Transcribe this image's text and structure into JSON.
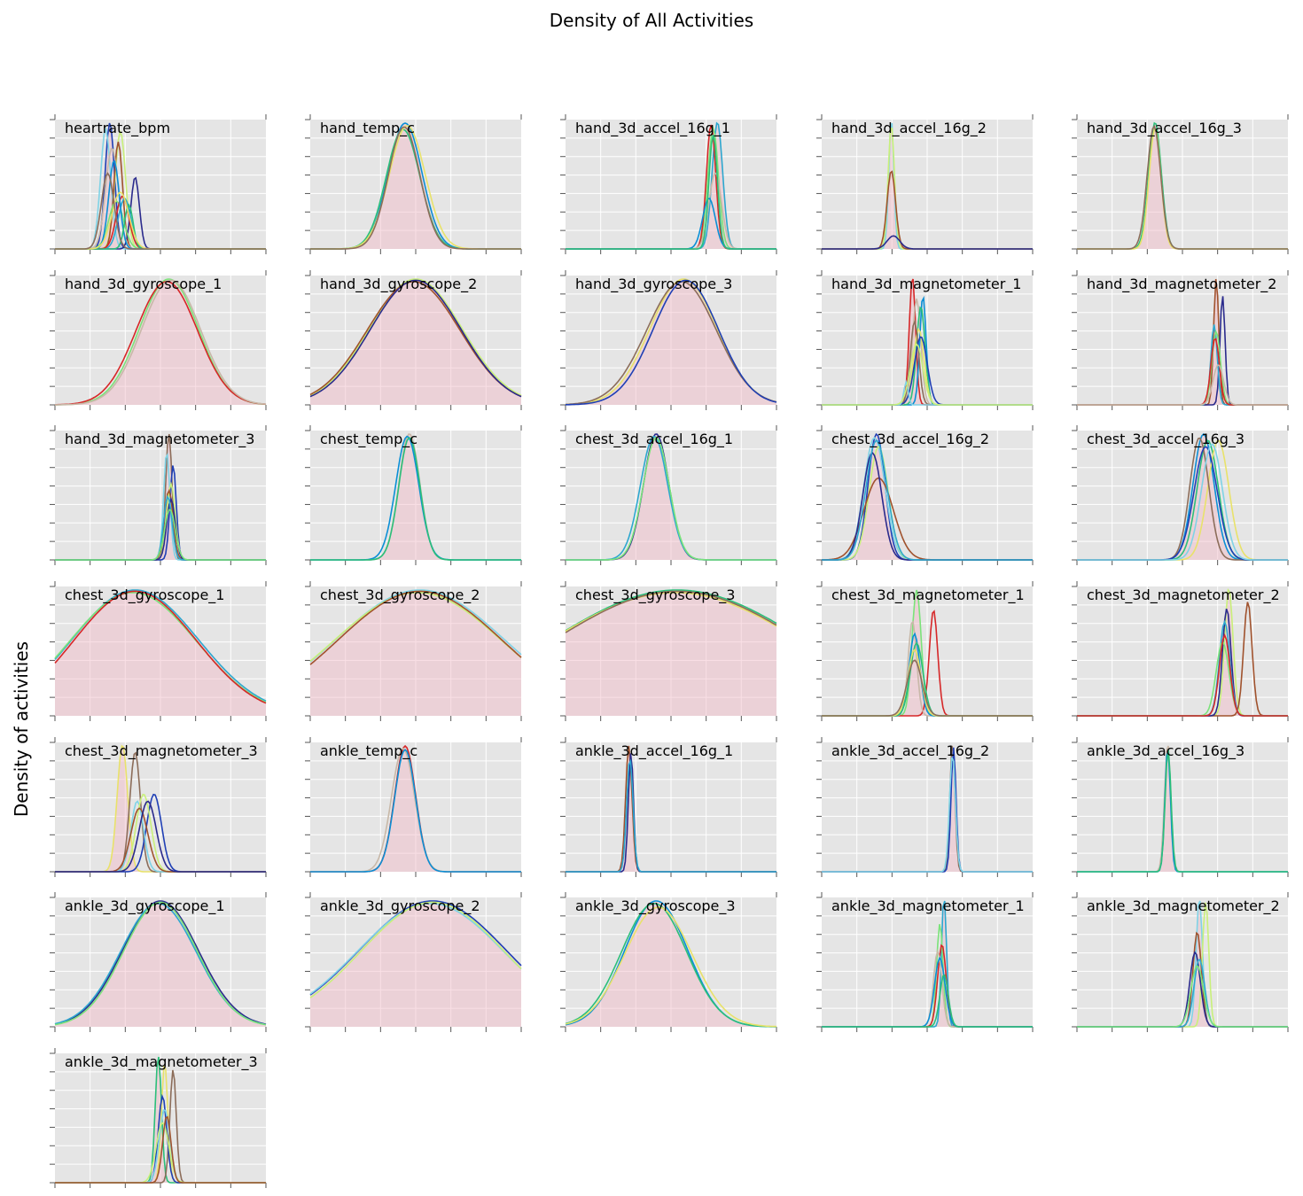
{
  "figure": {
    "title": "Density of All Activities",
    "ylabel": "Density of activities"
  },
  "style": {
    "panel_bg": "#e5e5e5",
    "grid_color": "#ffffff",
    "fill_color": "#f2b8c6",
    "palette": [
      "#1f3fb5",
      "#0a8fd6",
      "#2ca7cf",
      "#7fd3e6",
      "#2bbf7a",
      "#7be37a",
      "#c9f07a",
      "#e8e26a",
      "#d62728",
      "#a0522d",
      "#8c6d5a",
      "#c8b8a8",
      "#2a2a8c"
    ]
  },
  "chart_data": [
    {
      "type": "area",
      "title": "heartrate_bpm",
      "grid": true,
      "legend": "none",
      "series": [
        {
          "mu": 0.26,
          "sd": 0.022,
          "amp": 1.0
        },
        {
          "mu": 0.24,
          "sd": 0.024,
          "amp": 0.95
        },
        {
          "mu": 0.31,
          "sd": 0.025,
          "amp": 0.93
        },
        {
          "mu": 0.3,
          "sd": 0.02,
          "amp": 0.85
        },
        {
          "mu": 0.38,
          "sd": 0.02,
          "amp": 0.57
        },
        {
          "mu": 0.33,
          "sd": 0.03,
          "amp": 0.4
        },
        {
          "mu": 0.29,
          "sd": 0.035,
          "amp": 0.38
        },
        {
          "mu": 0.32,
          "sd": 0.03,
          "amp": 0.42
        },
        {
          "mu": 0.27,
          "sd": 0.03,
          "amp": 0.8
        },
        {
          "mu": 0.28,
          "sd": 0.025,
          "amp": 0.7
        },
        {
          "mu": 0.35,
          "sd": 0.02,
          "amp": 0.35
        },
        {
          "mu": 0.31,
          "sd": 0.04,
          "amp": 0.45
        },
        {
          "mu": 0.25,
          "sd": 0.03,
          "amp": 0.6
        }
      ]
    },
    {
      "type": "area",
      "title": "hand_temp_c",
      "grid": true,
      "legend": "none",
      "series": [
        {
          "mu": 0.45,
          "sd": 0.08,
          "amp": 1.0
        },
        {
          "mu": 0.44,
          "sd": 0.08,
          "amp": 0.95
        },
        {
          "mu": 0.46,
          "sd": 0.085,
          "amp": 0.98
        },
        {
          "mu": 0.445,
          "sd": 0.075,
          "amp": 0.97
        }
      ]
    },
    {
      "type": "area",
      "title": "hand_3d_accel_16g_1",
      "grid": true,
      "legend": "none",
      "series": [
        {
          "mu": 0.72,
          "sd": 0.025,
          "amp": 1.0
        },
        {
          "mu": 0.7,
          "sd": 0.025,
          "amp": 0.95
        },
        {
          "mu": 0.69,
          "sd": 0.022,
          "amp": 0.98
        },
        {
          "mu": 0.71,
          "sd": 0.03,
          "amp": 0.6
        },
        {
          "mu": 0.68,
          "sd": 0.03,
          "amp": 0.4
        },
        {
          "mu": 0.7,
          "sd": 0.02,
          "amp": 0.9
        }
      ]
    },
    {
      "type": "area",
      "title": "hand_3d_accel_16g_2",
      "grid": true,
      "legend": "none",
      "series": [
        {
          "mu": 0.33,
          "sd": 0.012,
          "amp": 1.0
        },
        {
          "mu": 0.33,
          "sd": 0.015,
          "amp": 0.95
        },
        {
          "mu": 0.33,
          "sd": 0.02,
          "amp": 0.6
        },
        {
          "mu": 0.34,
          "sd": 0.03,
          "amp": 0.1
        }
      ]
    },
    {
      "type": "area",
      "title": "hand_3d_accel_16g_3",
      "grid": true,
      "legend": "none",
      "series": [
        {
          "mu": 0.37,
          "sd": 0.03,
          "amp": 1.0
        },
        {
          "mu": 0.37,
          "sd": 0.028,
          "amp": 0.95
        },
        {
          "mu": 0.365,
          "sd": 0.032,
          "amp": 0.97
        }
      ]
    },
    {
      "type": "area",
      "title": "hand_3d_gyroscope_1",
      "grid": true,
      "legend": "none",
      "series": [
        {
          "mu": 0.54,
          "sd": 0.14,
          "amp": 1.0
        },
        {
          "mu": 0.53,
          "sd": 0.145,
          "amp": 0.98
        },
        {
          "mu": 0.55,
          "sd": 0.14,
          "amp": 0.99
        }
      ]
    },
    {
      "type": "area",
      "title": "hand_3d_gyroscope_2",
      "grid": true,
      "legend": "none",
      "series": [
        {
          "mu": 0.5,
          "sd": 0.22,
          "amp": 1.0
        },
        {
          "mu": 0.49,
          "sd": 0.22,
          "amp": 0.98
        },
        {
          "mu": 0.5,
          "sd": 0.215,
          "amp": 0.99
        }
      ]
    },
    {
      "type": "area",
      "title": "hand_3d_gyroscope_3",
      "grid": true,
      "legend": "none",
      "series": [
        {
          "mu": 0.56,
          "sd": 0.16,
          "amp": 1.0
        },
        {
          "mu": 0.55,
          "sd": 0.165,
          "amp": 0.98
        },
        {
          "mu": 0.57,
          "sd": 0.155,
          "amp": 0.99
        }
      ]
    },
    {
      "type": "area",
      "title": "hand_3d_magnetometer_1",
      "grid": true,
      "legend": "none",
      "series": [
        {
          "mu": 0.43,
          "sd": 0.015,
          "amp": 0.85
        },
        {
          "mu": 0.45,
          "sd": 0.02,
          "amp": 0.7
        },
        {
          "mu": 0.48,
          "sd": 0.015,
          "amp": 0.72
        },
        {
          "mu": 0.47,
          "sd": 0.02,
          "amp": 0.65
        },
        {
          "mu": 0.46,
          "sd": 0.025,
          "amp": 0.5
        },
        {
          "mu": 0.44,
          "sd": 0.02,
          "amp": 0.55
        },
        {
          "mu": 0.47,
          "sd": 0.03,
          "amp": 0.45
        },
        {
          "mu": 0.4,
          "sd": 0.01,
          "amp": 0.15
        },
        {
          "mu": 0.45,
          "sd": 0.03,
          "amp": 0.4
        }
      ]
    },
    {
      "type": "area",
      "title": "hand_3d_magnetometer_2",
      "grid": true,
      "legend": "none",
      "series": [
        {
          "mu": 0.66,
          "sd": 0.012,
          "amp": 0.95
        },
        {
          "mu": 0.69,
          "sd": 0.012,
          "amp": 0.82
        },
        {
          "mu": 0.65,
          "sd": 0.015,
          "amp": 0.6
        },
        {
          "mu": 0.66,
          "sd": 0.02,
          "amp": 0.55
        },
        {
          "mu": 0.655,
          "sd": 0.02,
          "amp": 0.5
        },
        {
          "mu": 0.67,
          "sd": 0.025,
          "amp": 0.3
        }
      ]
    },
    {
      "type": "area",
      "title": "hand_3d_magnetometer_3",
      "grid": true,
      "legend": "none",
      "series": [
        {
          "mu": 0.54,
          "sd": 0.015,
          "amp": 1.0
        },
        {
          "mu": 0.56,
          "sd": 0.015,
          "amp": 0.75
        },
        {
          "mu": 0.53,
          "sd": 0.015,
          "amp": 0.85
        },
        {
          "mu": 0.55,
          "sd": 0.02,
          "amp": 0.6
        },
        {
          "mu": 0.54,
          "sd": 0.02,
          "amp": 0.55
        },
        {
          "mu": 0.55,
          "sd": 0.02,
          "amp": 0.48
        },
        {
          "mu": 0.535,
          "sd": 0.02,
          "amp": 0.5
        },
        {
          "mu": 0.545,
          "sd": 0.025,
          "amp": 0.4
        }
      ]
    },
    {
      "type": "area",
      "title": "chest_temp_c",
      "grid": true,
      "legend": "none",
      "series": [
        {
          "mu": 0.47,
          "sd": 0.05,
          "amp": 1.0
        },
        {
          "mu": 0.46,
          "sd": 0.055,
          "amp": 0.98
        },
        {
          "mu": 0.47,
          "sd": 0.05,
          "amp": 0.97
        }
      ]
    },
    {
      "type": "area",
      "title": "chest_3d_accel_16g_1",
      "grid": true,
      "legend": "none",
      "series": [
        {
          "mu": 0.43,
          "sd": 0.06,
          "amp": 1.0
        },
        {
          "mu": 0.42,
          "sd": 0.065,
          "amp": 0.98
        },
        {
          "mu": 0.43,
          "sd": 0.062,
          "amp": 0.97
        }
      ]
    },
    {
      "type": "area",
      "title": "chest_3d_accel_16g_2",
      "grid": true,
      "legend": "none",
      "series": [
        {
          "mu": 0.26,
          "sd": 0.04,
          "amp": 1.0
        },
        {
          "mu": 0.25,
          "sd": 0.05,
          "amp": 0.97
        },
        {
          "mu": 0.27,
          "sd": 0.045,
          "amp": 0.9
        },
        {
          "mu": 0.27,
          "sd": 0.07,
          "amp": 0.65
        },
        {
          "mu": 0.24,
          "sd": 0.045,
          "amp": 0.85
        },
        {
          "mu": 0.26,
          "sd": 0.05,
          "amp": 0.95
        }
      ]
    },
    {
      "type": "area",
      "title": "chest_3d_accel_16g_3",
      "grid": true,
      "legend": "none",
      "series": [
        {
          "mu": 0.6,
          "sd": 0.05,
          "amp": 1.0
        },
        {
          "mu": 0.62,
          "sd": 0.05,
          "amp": 0.95
        },
        {
          "mu": 0.67,
          "sd": 0.05,
          "amp": 0.95
        },
        {
          "mu": 0.58,
          "sd": 0.045,
          "amp": 0.97
        },
        {
          "mu": 0.61,
          "sd": 0.055,
          "amp": 0.9
        },
        {
          "mu": 0.64,
          "sd": 0.05,
          "amp": 0.92
        }
      ]
    },
    {
      "type": "area",
      "title": "chest_3d_gyroscope_1",
      "grid": true,
      "legend": "none",
      "series": [
        {
          "mu": 0.38,
          "sd": 0.3,
          "amp": 1.0
        },
        {
          "mu": 0.37,
          "sd": 0.3,
          "amp": 0.98
        },
        {
          "mu": 0.38,
          "sd": 0.29,
          "amp": 0.99
        }
      ]
    },
    {
      "type": "area",
      "title": "chest_3d_gyroscope_2",
      "grid": true,
      "legend": "none",
      "series": [
        {
          "mu": 0.52,
          "sd": 0.4,
          "amp": 1.0
        },
        {
          "mu": 0.51,
          "sd": 0.4,
          "amp": 0.98
        },
        {
          "mu": 0.52,
          "sd": 0.39,
          "amp": 0.99
        }
      ]
    },
    {
      "type": "area",
      "title": "chest_3d_gyroscope_3",
      "grid": true,
      "legend": "none",
      "series": [
        {
          "mu": 0.53,
          "sd": 0.6,
          "amp": 1.0
        },
        {
          "mu": 0.52,
          "sd": 0.6,
          "amp": 0.98
        },
        {
          "mu": 0.53,
          "sd": 0.59,
          "amp": 0.99
        }
      ]
    },
    {
      "type": "area",
      "title": "chest_3d_magnetometer_1",
      "grid": true,
      "legend": "none",
      "series": [
        {
          "mu": 0.45,
          "sd": 0.022,
          "amp": 0.95
        },
        {
          "mu": 0.53,
          "sd": 0.02,
          "amp": 0.8
        },
        {
          "mu": 0.43,
          "sd": 0.02,
          "amp": 0.72
        },
        {
          "mu": 0.44,
          "sd": 0.025,
          "amp": 0.62
        },
        {
          "mu": 0.45,
          "sd": 0.03,
          "amp": 0.55
        },
        {
          "mu": 0.44,
          "sd": 0.03,
          "amp": 0.5
        },
        {
          "mu": 0.44,
          "sd": 0.035,
          "amp": 0.42
        }
      ]
    },
    {
      "type": "area",
      "title": "chest_3d_magnetometer_2",
      "grid": true,
      "legend": "none",
      "series": [
        {
          "mu": 0.72,
          "sd": 0.02,
          "amp": 0.95
        },
        {
          "mu": 0.81,
          "sd": 0.02,
          "amp": 0.85
        },
        {
          "mu": 0.71,
          "sd": 0.02,
          "amp": 0.8
        },
        {
          "mu": 0.7,
          "sd": 0.025,
          "amp": 0.7
        },
        {
          "mu": 0.69,
          "sd": 0.03,
          "amp": 0.55
        },
        {
          "mu": 0.7,
          "sd": 0.025,
          "amp": 0.6
        }
      ]
    },
    {
      "type": "area",
      "title": "chest_3d_magnetometer_3",
      "grid": true,
      "legend": "none",
      "series": [
        {
          "mu": 0.32,
          "sd": 0.025,
          "amp": 0.9
        },
        {
          "mu": 0.38,
          "sd": 0.025,
          "amp": 0.85
        },
        {
          "mu": 0.47,
          "sd": 0.035,
          "amp": 0.55
        },
        {
          "mu": 0.39,
          "sd": 0.03,
          "amp": 0.5
        },
        {
          "mu": 0.42,
          "sd": 0.035,
          "amp": 0.55
        },
        {
          "mu": 0.4,
          "sd": 0.04,
          "amp": 0.45
        },
        {
          "mu": 0.44,
          "sd": 0.04,
          "amp": 0.5
        }
      ]
    },
    {
      "type": "area",
      "title": "ankle_temp_c",
      "grid": true,
      "legend": "none",
      "series": [
        {
          "mu": 0.45,
          "sd": 0.05,
          "amp": 1.0
        },
        {
          "mu": 0.44,
          "sd": 0.055,
          "amp": 0.98
        },
        {
          "mu": 0.45,
          "sd": 0.05,
          "amp": 0.97
        }
      ]
    },
    {
      "type": "area",
      "title": "ankle_3d_accel_16g_1",
      "grid": true,
      "legend": "none",
      "series": [
        {
          "mu": 0.3,
          "sd": 0.015,
          "amp": 1.0
        },
        {
          "mu": 0.31,
          "sd": 0.012,
          "amp": 0.95
        },
        {
          "mu": 0.305,
          "sd": 0.015,
          "amp": 0.9
        }
      ]
    },
    {
      "type": "area",
      "title": "ankle_3d_accel_16g_2",
      "grid": true,
      "legend": "none",
      "series": [
        {
          "mu": 0.62,
          "sd": 0.012,
          "amp": 1.0
        },
        {
          "mu": 0.625,
          "sd": 0.012,
          "amp": 0.95
        },
        {
          "mu": 0.62,
          "sd": 0.014,
          "amp": 0.9
        }
      ]
    },
    {
      "type": "area",
      "title": "ankle_3d_accel_16g_3",
      "grid": true,
      "legend": "none",
      "series": [
        {
          "mu": 0.43,
          "sd": 0.015,
          "amp": 1.0
        },
        {
          "mu": 0.43,
          "sd": 0.013,
          "amp": 0.97
        },
        {
          "mu": 0.432,
          "sd": 0.014,
          "amp": 0.95
        }
      ]
    },
    {
      "type": "area",
      "title": "ankle_3d_gyroscope_1",
      "grid": true,
      "legend": "none",
      "series": [
        {
          "mu": 0.5,
          "sd": 0.18,
          "amp": 1.0
        },
        {
          "mu": 0.49,
          "sd": 0.18,
          "amp": 0.98
        },
        {
          "mu": 0.5,
          "sd": 0.175,
          "amp": 0.99
        }
      ]
    },
    {
      "type": "area",
      "title": "ankle_3d_gyroscope_2",
      "grid": true,
      "legend": "none",
      "series": [
        {
          "mu": 0.58,
          "sd": 0.35,
          "amp": 1.0
        },
        {
          "mu": 0.57,
          "sd": 0.35,
          "amp": 0.98
        },
        {
          "mu": 0.58,
          "sd": 0.34,
          "amp": 0.99
        }
      ]
    },
    {
      "type": "area",
      "title": "ankle_3d_gyroscope_3",
      "grid": true,
      "legend": "none",
      "series": [
        {
          "mu": 0.43,
          "sd": 0.15,
          "amp": 1.0
        },
        {
          "mu": 0.42,
          "sd": 0.155,
          "amp": 0.98
        },
        {
          "mu": 0.44,
          "sd": 0.16,
          "amp": 0.95
        }
      ]
    },
    {
      "type": "area",
      "title": "ankle_3d_magnetometer_1",
      "grid": true,
      "legend": "none",
      "series": [
        {
          "mu": 0.58,
          "sd": 0.012,
          "amp": 0.95
        },
        {
          "mu": 0.56,
          "sd": 0.015,
          "amp": 0.75
        },
        {
          "mu": 0.57,
          "sd": 0.02,
          "amp": 0.6
        },
        {
          "mu": 0.55,
          "sd": 0.02,
          "amp": 0.55
        },
        {
          "mu": 0.56,
          "sd": 0.025,
          "amp": 0.5
        },
        {
          "mu": 0.58,
          "sd": 0.02,
          "amp": 0.38
        }
      ]
    },
    {
      "type": "area",
      "title": "ankle_3d_magnetometer_2",
      "grid": true,
      "legend": "none",
      "series": [
        {
          "mu": 0.58,
          "sd": 0.015,
          "amp": 0.95
        },
        {
          "mu": 0.61,
          "sd": 0.015,
          "amp": 0.92
        },
        {
          "mu": 0.57,
          "sd": 0.02,
          "amp": 0.7
        },
        {
          "mu": 0.56,
          "sd": 0.025,
          "amp": 0.55
        },
        {
          "mu": 0.58,
          "sd": 0.025,
          "amp": 0.5
        },
        {
          "mu": 0.57,
          "sd": 0.03,
          "amp": 0.45
        }
      ]
    },
    {
      "type": "area",
      "title": "ankle_3d_magnetometer_3",
      "grid": true,
      "legend": "none",
      "series": [
        {
          "mu": 0.49,
          "sd": 0.015,
          "amp": 0.95
        },
        {
          "mu": 0.52,
          "sd": 0.015,
          "amp": 0.9
        },
        {
          "mu": 0.56,
          "sd": 0.015,
          "amp": 0.85
        },
        {
          "mu": 0.51,
          "sd": 0.02,
          "amp": 0.65
        },
        {
          "mu": 0.52,
          "sd": 0.025,
          "amp": 0.55
        },
        {
          "mu": 0.51,
          "sd": 0.03,
          "amp": 0.45
        },
        {
          "mu": 0.53,
          "sd": 0.02,
          "amp": 0.5
        }
      ]
    }
  ]
}
